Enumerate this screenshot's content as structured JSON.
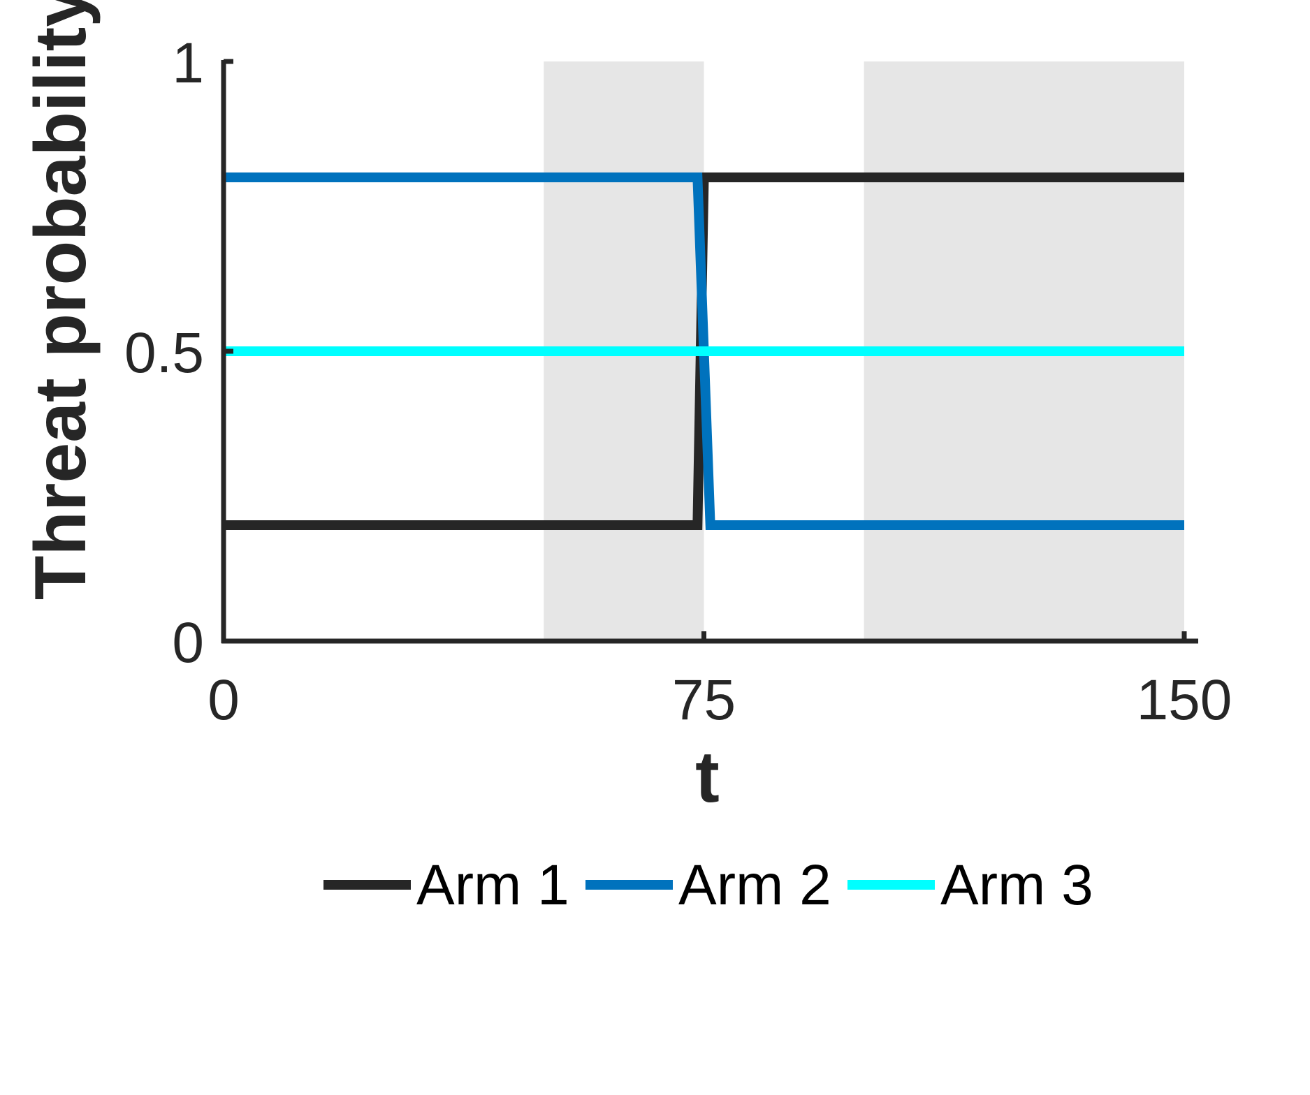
{
  "chart_data": {
    "type": "line",
    "title": "",
    "xlabel": "t",
    "ylabel": "Threat probability",
    "xlim": [
      0,
      150
    ],
    "ylim": [
      0,
      1
    ],
    "xticks": [
      0,
      75,
      150
    ],
    "xtick_labels": [
      "0",
      "75",
      "150"
    ],
    "yticks": [
      0,
      0.5,
      1
    ],
    "ytick_labels": [
      "0",
      "0.5",
      "1"
    ],
    "grid": false,
    "legend_position": "bottom",
    "shaded_regions": [
      {
        "x": [
          50,
          75
        ],
        "color": "#e6e6e6"
      },
      {
        "x": [
          100,
          150
        ],
        "color": "#e6e6e6"
      }
    ],
    "series": [
      {
        "name": "Arm 1",
        "color": "#262626",
        "x": [
          0,
          74,
          75,
          150
        ],
        "y": [
          0.2,
          0.2,
          0.8,
          0.8
        ]
      },
      {
        "name": "Arm 2",
        "color": "#0072bd",
        "x": [
          0,
          74,
          76,
          150
        ],
        "y": [
          0.8,
          0.8,
          0.2,
          0.2
        ]
      },
      {
        "name": "Arm 3",
        "color": "#00ffff",
        "x": [
          0,
          150
        ],
        "y": [
          0.5,
          0.5
        ]
      }
    ]
  }
}
